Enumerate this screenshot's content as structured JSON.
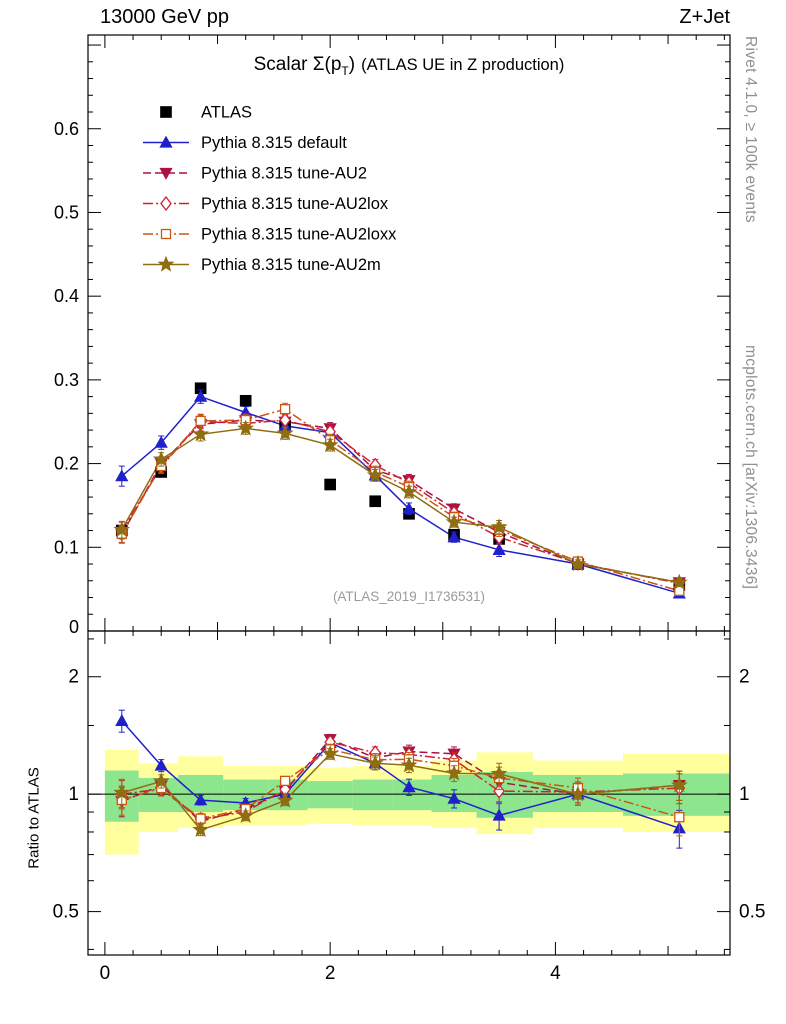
{
  "header": {
    "left_label": "13000 GeV pp",
    "right_label": "Z+Jet"
  },
  "title": {
    "main": "Scalar Σ(p",
    "sub": "T",
    "after": ")",
    "context": "(ATLAS UE in Z production)"
  },
  "watermark": "(ATLAS_2019_I1736531)",
  "side_labels": {
    "rivet": "Rivet 4.1.0, ≥ 100k events",
    "mcplots": "mcplots.cern.ch [arXiv:1306.3436]"
  },
  "ratio_axis_label": "Ratio to ATLAS",
  "chart_data": {
    "type": "line",
    "title": "Scalar Σ(p_T) (ATLAS UE in Z production)",
    "x": [
      0.15,
      0.5,
      0.85,
      1.25,
      1.6,
      2.0,
      2.4,
      2.7,
      3.1,
      3.5,
      4.2,
      5.1
    ],
    "xlim": [
      -0.15,
      5.55
    ],
    "xticks": [
      {
        "v": 0,
        "label": "0"
      },
      {
        "v": 2,
        "label": "2"
      },
      {
        "v": 4,
        "label": "4"
      }
    ],
    "main_panel": {
      "ylim": [
        0,
        0.712
      ],
      "minor_step": 0.02,
      "yticks": [
        {
          "v": 0,
          "label": "0"
        },
        {
          "v": 0.1,
          "label": "0.1"
        },
        {
          "v": 0.2,
          "label": "0.2"
        },
        {
          "v": 0.3,
          "label": "0.3"
        },
        {
          "v": 0.4,
          "label": "0.4"
        },
        {
          "v": 0.5,
          "label": "0.5"
        },
        {
          "v": 0.6,
          "label": "0.6"
        }
      ]
    },
    "ratio_panel": {
      "scale": "log",
      "ylim": [
        0.387,
        2.62
      ],
      "ref_value": 1,
      "yticks": [
        {
          "v": 0.5,
          "label": "0.5"
        },
        {
          "v": 1,
          "label": "1"
        },
        {
          "v": 2,
          "label": "2"
        }
      ],
      "minor_ticks": [
        0.4,
        0.6,
        0.7,
        0.8,
        0.9,
        1.5,
        2.5
      ],
      "bands": {
        "edges": [
          0,
          0.3,
          0.65,
          1.05,
          1.45,
          1.8,
          2.2,
          2.55,
          2.9,
          3.3,
          3.8,
          4.6,
          5.55
        ],
        "yellow_lo": [
          0.7,
          0.8,
          0.82,
          0.83,
          0.83,
          0.84,
          0.83,
          0.83,
          0.82,
          0.79,
          0.82,
          0.8
        ],
        "yellow_hi": [
          1.3,
          1.2,
          1.25,
          1.18,
          1.18,
          1.17,
          1.18,
          1.18,
          1.22,
          1.28,
          1.22,
          1.27
        ],
        "green_lo": [
          0.85,
          0.9,
          0.9,
          0.91,
          0.91,
          0.92,
          0.91,
          0.91,
          0.9,
          0.87,
          0.9,
          0.88
        ],
        "green_hi": [
          1.15,
          1.1,
          1.12,
          1.09,
          1.09,
          1.08,
          1.09,
          1.09,
          1.12,
          1.14,
          1.12,
          1.13
        ],
        "yellow_color": "#ffff9e",
        "green_color": "#8de58d"
      }
    },
    "series": [
      {
        "name": "ATLAS",
        "color": "#000000",
        "marker": "square-filled",
        "line": "none",
        "is_reference": true,
        "values": [
          0.12,
          0.19,
          0.29,
          0.275,
          0.245,
          0.175,
          0.155,
          0.14,
          0.115,
          0.11,
          0.08,
          0.055
        ]
      },
      {
        "name": "Pythia 8.315 default",
        "color": "#2020cc",
        "marker": "triangle-up-filled",
        "line": "solid",
        "values": [
          0.185,
          0.225,
          0.28,
          0.261,
          0.245,
          0.237,
          0.186,
          0.146,
          0.112,
          0.097,
          0.08,
          0.045
        ],
        "yerr": [
          0.012,
          0.008,
          0.008,
          0.007,
          0.007,
          0.007,
          0.007,
          0.007,
          0.006,
          0.008,
          0.005,
          0.005
        ]
      },
      {
        "name": "Pythia 8.315 tune-AU2",
        "color": "#aa1144",
        "marker": "triangle-down-filled",
        "line": "dashed",
        "values": [
          0.115,
          0.2,
          0.247,
          0.252,
          0.25,
          0.242,
          0.192,
          0.18,
          0.146,
          0.118,
          0.08,
          0.058
        ],
        "yerr": [
          0.01,
          0.008,
          0.008,
          0.007,
          0.007,
          0.007,
          0.007,
          0.007,
          0.006,
          0.008,
          0.005,
          0.005
        ]
      },
      {
        "name": "Pythia 8.315 tune-AU2lox",
        "color": "#cc2233",
        "marker": "diamond-open",
        "line": "dashdot",
        "values": [
          0.12,
          0.196,
          0.25,
          0.248,
          0.252,
          0.238,
          0.198,
          0.177,
          0.141,
          0.112,
          0.081,
          0.057
        ],
        "yerr": [
          0.01,
          0.008,
          0.008,
          0.007,
          0.007,
          0.007,
          0.007,
          0.007,
          0.006,
          0.008,
          0.005,
          0.005
        ]
      },
      {
        "name": "Pythia 8.315 tune-AU2loxx",
        "color": "#cc5511",
        "marker": "square-open",
        "line": "dashdot",
        "values": [
          0.116,
          0.197,
          0.251,
          0.252,
          0.265,
          0.228,
          0.19,
          0.172,
          0.136,
          0.121,
          0.083,
          0.048
        ],
        "yerr": [
          0.01,
          0.008,
          0.008,
          0.007,
          0.007,
          0.007,
          0.007,
          0.007,
          0.006,
          0.008,
          0.005,
          0.005
        ]
      },
      {
        "name": "Pythia 8.315 tune-AU2m",
        "color": "#8f6d13",
        "marker": "star-filled",
        "line": "solid",
        "values": [
          0.121,
          0.205,
          0.235,
          0.242,
          0.236,
          0.222,
          0.186,
          0.166,
          0.13,
          0.124,
          0.08,
          0.058
        ],
        "yerr": [
          0.01,
          0.008,
          0.008,
          0.007,
          0.007,
          0.007,
          0.007,
          0.007,
          0.006,
          0.008,
          0.005,
          0.005
        ]
      }
    ]
  }
}
